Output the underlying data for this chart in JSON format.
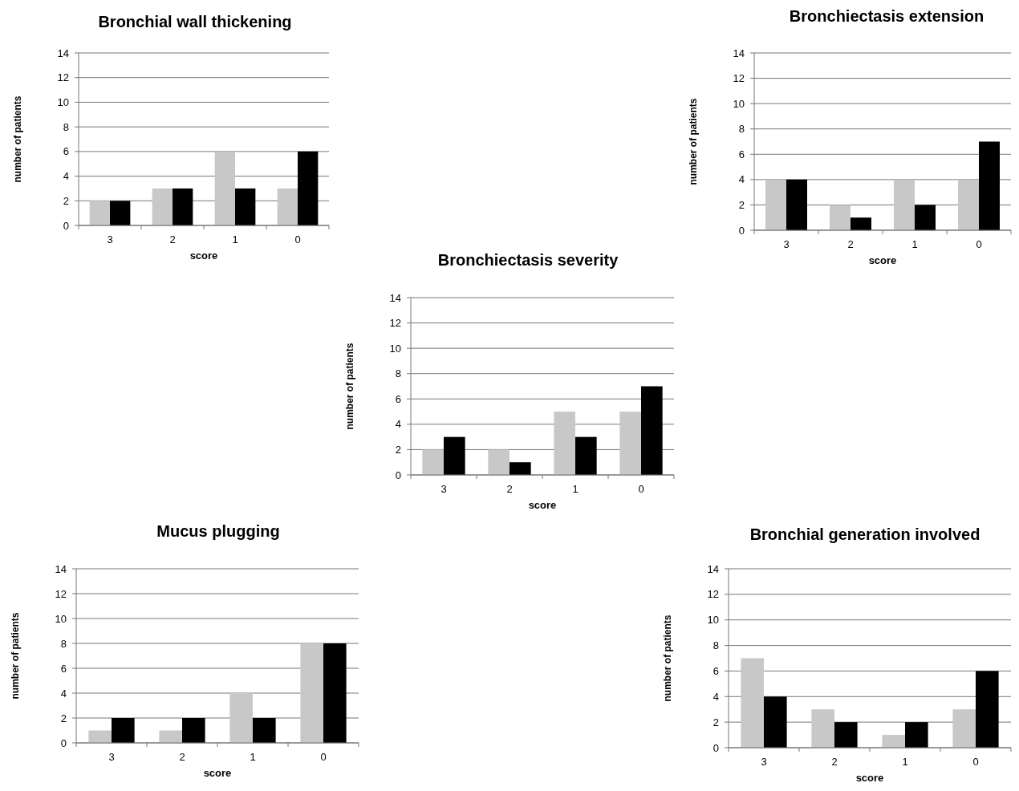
{
  "chart_data": [
    {
      "type": "bar",
      "title": "Bronchial wall thickening",
      "xlabel": "score",
      "ylabel": "number of patients",
      "categories": [
        "3",
        "2",
        "1",
        "0"
      ],
      "series": [
        {
          "color": "#c8c8c8",
          "values": [
            2,
            3,
            6,
            3
          ]
        },
        {
          "color": "#000000",
          "values": [
            2,
            3,
            3,
            6
          ]
        }
      ],
      "ylim": [
        0,
        14
      ],
      "yticks": [
        0,
        2,
        4,
        6,
        8,
        10,
        12,
        14
      ],
      "grid": "y"
    },
    {
      "type": "bar",
      "title": "Bronchiectasis extension",
      "xlabel": "score",
      "ylabel": "number of patients",
      "categories": [
        "3",
        "2",
        "1",
        "0"
      ],
      "series": [
        {
          "color": "#c8c8c8",
          "values": [
            4,
            2,
            4,
            4
          ]
        },
        {
          "color": "#000000",
          "values": [
            4,
            1,
            2,
            7
          ]
        }
      ],
      "ylim": [
        0,
        14
      ],
      "yticks": [
        0,
        2,
        4,
        6,
        8,
        10,
        12,
        14
      ],
      "grid": "y"
    },
    {
      "type": "bar",
      "title": "Bronchiectasis severity",
      "xlabel": "score",
      "ylabel": "number of patients",
      "categories": [
        "3",
        "2",
        "1",
        "0"
      ],
      "series": [
        {
          "color": "#c8c8c8",
          "values": [
            2,
            2,
            5,
            5
          ]
        },
        {
          "color": "#000000",
          "values": [
            3,
            1,
            3,
            7
          ]
        }
      ],
      "ylim": [
        0,
        14
      ],
      "yticks": [
        0,
        2,
        4,
        6,
        8,
        10,
        12,
        14
      ],
      "grid": "y"
    },
    {
      "type": "bar",
      "title": "Mucus plugging",
      "xlabel": "score",
      "ylabel": "number of patients",
      "categories": [
        "3",
        "2",
        "1",
        "0"
      ],
      "series": [
        {
          "color": "#c8c8c8",
          "values": [
            1,
            1,
            4,
            8
          ]
        },
        {
          "color": "#000000",
          "values": [
            2,
            2,
            2,
            8
          ]
        }
      ],
      "ylim": [
        0,
        14
      ],
      "yticks": [
        0,
        2,
        4,
        6,
        8,
        10,
        12,
        14
      ],
      "grid": "y"
    },
    {
      "type": "bar",
      "title": "Bronchial generation involved",
      "xlabel": "score",
      "ylabel": "number of patients",
      "categories": [
        "3",
        "2",
        "1",
        "0"
      ],
      "series": [
        {
          "color": "#c8c8c8",
          "values": [
            7,
            3,
            1,
            3
          ]
        },
        {
          "color": "#000000",
          "values": [
            4,
            2,
            2,
            6
          ]
        }
      ],
      "ylim": [
        0,
        14
      ],
      "yticks": [
        0,
        2,
        4,
        6,
        8,
        10,
        12,
        14
      ],
      "grid": "y"
    }
  ]
}
